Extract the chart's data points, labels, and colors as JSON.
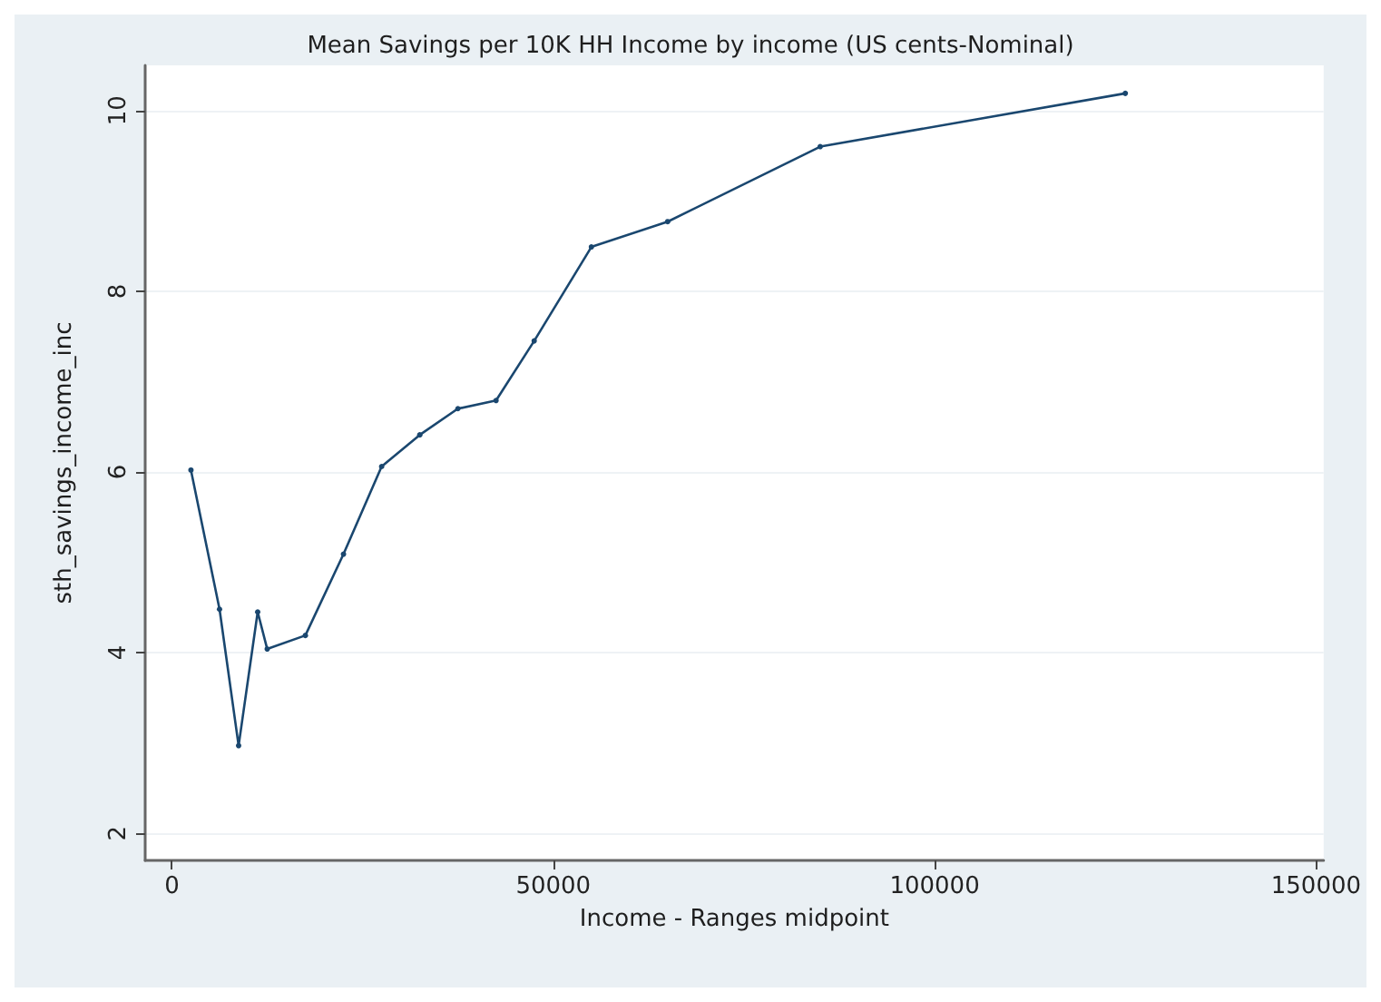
{
  "chart_data": {
    "type": "line",
    "title": "Mean Savings per 10K HH Income by income (US cents-Nominal)",
    "xlabel": "Income - Ranges midpoint",
    "ylabel": "sth_savings_income_inc",
    "x": [
      2500,
      6250,
      8750,
      11250,
      12500,
      17500,
      22500,
      27500,
      32500,
      37500,
      42500,
      47500,
      55000,
      65000,
      85000,
      125000
    ],
    "series": [
      {
        "color": "#1a476f",
        "values": [
          6.02,
          4.48,
          2.97,
          4.45,
          4.04,
          4.19,
          5.09,
          6.06,
          6.41,
          6.7,
          6.79,
          7.45,
          8.49,
          8.77,
          9.6,
          10.19
        ]
      }
    ],
    "xlim": [
      -3500,
      151000
    ],
    "ylim": [
      1.7,
      10.5
    ],
    "xticks": [
      0,
      50000,
      100000,
      150000
    ],
    "yticks": [
      2,
      4,
      6,
      8,
      10
    ],
    "grid": "y",
    "marker": "circle",
    "line_style": "solid"
  }
}
